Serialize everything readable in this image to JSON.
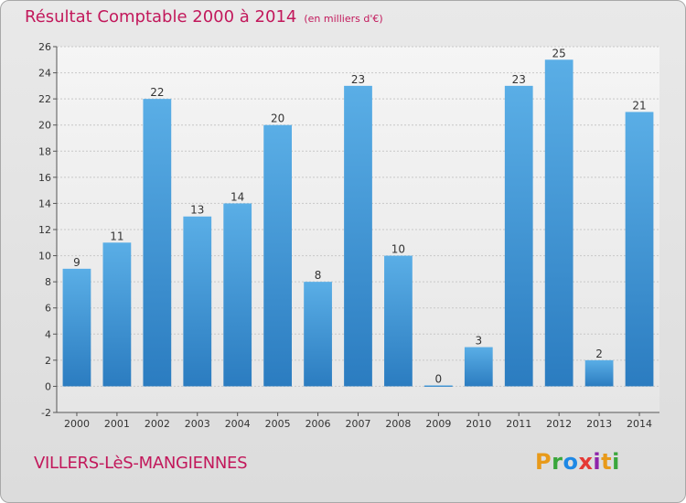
{
  "title": "Résultat Comptable 2000 à 2014",
  "subtitle": "(en milliers d'€)",
  "commune": "VILLERS-LèS-MANGIENNES",
  "logo_text": "Proxiti",
  "colors": {
    "accent": "#c2185b",
    "bar_light": "#5aaee6",
    "bar_dark": "#2b7cc0",
    "gridline": "#c8c8c8"
  },
  "chart_data": {
    "type": "bar",
    "title": "Résultat Comptable 2000 à 2014",
    "subtitle": "(en milliers d'€)",
    "categories": [
      "2000",
      "2001",
      "2002",
      "2003",
      "2004",
      "2005",
      "2006",
      "2007",
      "2008",
      "2009",
      "2010",
      "2011",
      "2012",
      "2013",
      "2014"
    ],
    "values": [
      9,
      11,
      22,
      13,
      14,
      20,
      8,
      23,
      10,
      0,
      3,
      23,
      25,
      2,
      21
    ],
    "ylim": [
      -2,
      26
    ],
    "yticks": [
      -2,
      0,
      2,
      4,
      6,
      8,
      10,
      12,
      14,
      16,
      18,
      20,
      22,
      24,
      26
    ],
    "grid": true,
    "data_labels": true
  }
}
